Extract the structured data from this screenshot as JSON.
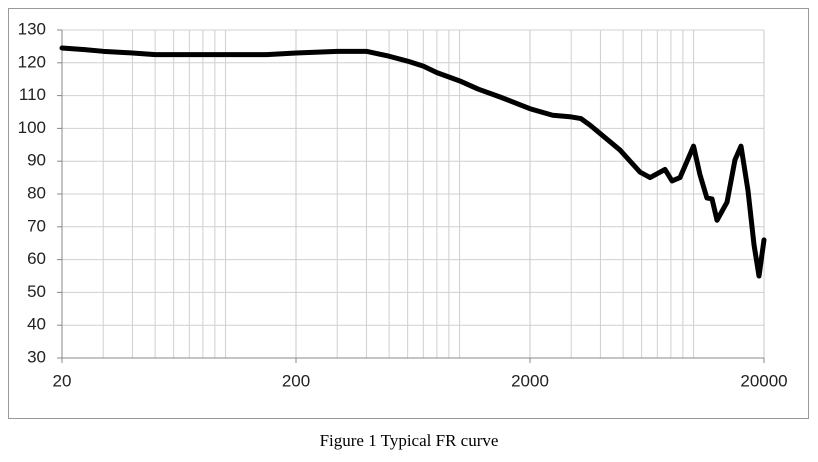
{
  "chart_data": {
    "type": "line",
    "caption": "Figure 1 Typical FR curve",
    "x": [
      20,
      25,
      30,
      40,
      50,
      60,
      80,
      100,
      150,
      200,
      300,
      400,
      500,
      600,
      700,
      800,
      1000,
      1200,
      1500,
      2000,
      2500,
      3000,
      3300,
      3610,
      4850,
      5900,
      6520,
      7550,
      8090,
      8750,
      10000,
      10640,
      11400,
      11990,
      12600,
      13900,
      15030,
      15950,
      17090,
      18130,
      19040,
      20000
    ],
    "series": [
      {
        "color": "#000000",
        "values": [
          124.5,
          124,
          123.5,
          123,
          122.5,
          122.5,
          122.5,
          122.5,
          122.5,
          123,
          123.5,
          123.5,
          122,
          120.5,
          119,
          117,
          114.5,
          112,
          109.5,
          106,
          104,
          103.5,
          103,
          101,
          93.4,
          86.7,
          85,
          87.5,
          84,
          85,
          94.6,
          86,
          78.8,
          78.5,
          72,
          77.5,
          90.4,
          94.6,
          81,
          64.5,
          55,
          66
        ]
      }
    ],
    "xlim": [
      20,
      20000
    ],
    "xticks": [
      20,
      200,
      2000,
      20000
    ],
    "xlog": true,
    "ylim": [
      30,
      130
    ],
    "yticks": [
      30,
      40,
      50,
      60,
      70,
      80,
      90,
      100,
      110,
      120,
      130
    ],
    "grid": true
  }
}
